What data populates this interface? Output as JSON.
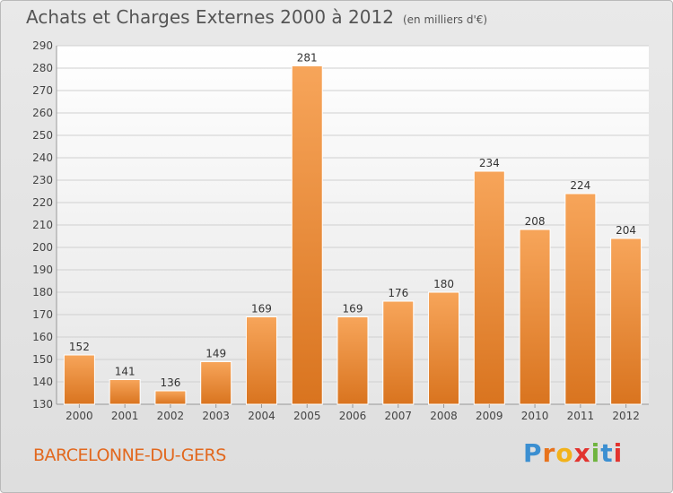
{
  "title": "Achats et Charges Externes 2000 à 2012",
  "unit_note": "(en milliers d'€)",
  "location": "BARCELONNE-DU-GERS",
  "brand": {
    "letters": [
      "P",
      "r",
      "o",
      "x",
      "i",
      "t",
      "i"
    ],
    "colors": [
      "#3b8fd1",
      "#e8731c",
      "#f2b21a",
      "#e2332e",
      "#6fb43f",
      "#3b8fd1",
      "#e2332e"
    ]
  },
  "colors": {
    "bar_light": "#f7a55a",
    "bar_dark": "#d9741f",
    "label_text": "#e2681e"
  },
  "chart_data": {
    "type": "bar",
    "categories": [
      "2000",
      "2001",
      "2002",
      "2003",
      "2004",
      "2005",
      "2006",
      "2007",
      "2008",
      "2009",
      "2010",
      "2011",
      "2012"
    ],
    "values": [
      152,
      141,
      136,
      149,
      169,
      281,
      169,
      176,
      180,
      234,
      208,
      224,
      204
    ],
    "ylim": [
      130,
      290
    ],
    "yticks": [
      130,
      140,
      150,
      160,
      170,
      180,
      190,
      200,
      210,
      220,
      230,
      240,
      250,
      260,
      270,
      280,
      290
    ],
    "grid": true,
    "data_labels": true
  }
}
